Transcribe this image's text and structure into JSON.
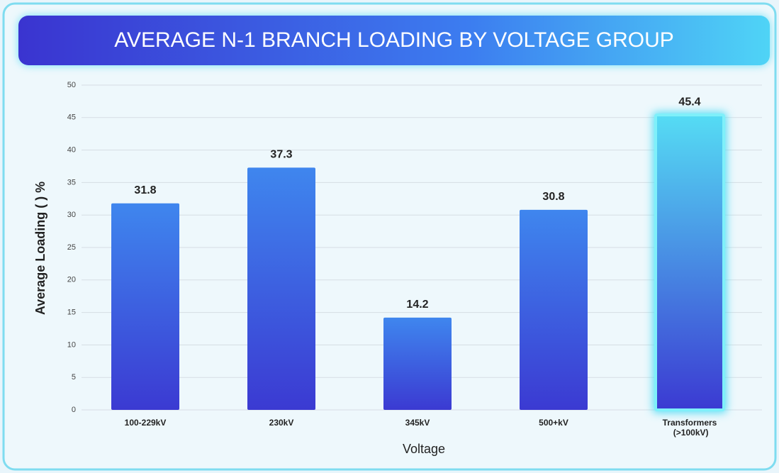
{
  "chart_data": {
    "type": "bar",
    "title": "AVERAGE N-1 BRANCH LOADING BY VOLTAGE GROUP",
    "x_label": "Voltage",
    "y_label": "Average Loading ( ) %",
    "categories": [
      "100-229kV",
      "230kV",
      "345kV",
      "500+kV",
      "Transformers (>100kV)"
    ],
    "values": [
      31.8,
      37.3,
      14.2,
      30.8,
      45.4
    ],
    "colors": [
      "#3f86ee",
      "#3f86ee",
      "#3f86ee",
      "#3f86ee",
      "#55dcf4"
    ],
    "ylim": [
      0,
      50
    ],
    "yticks": [
      0,
      5,
      10,
      15,
      20,
      25,
      30,
      35,
      40,
      45,
      50
    ],
    "grid": true
  }
}
